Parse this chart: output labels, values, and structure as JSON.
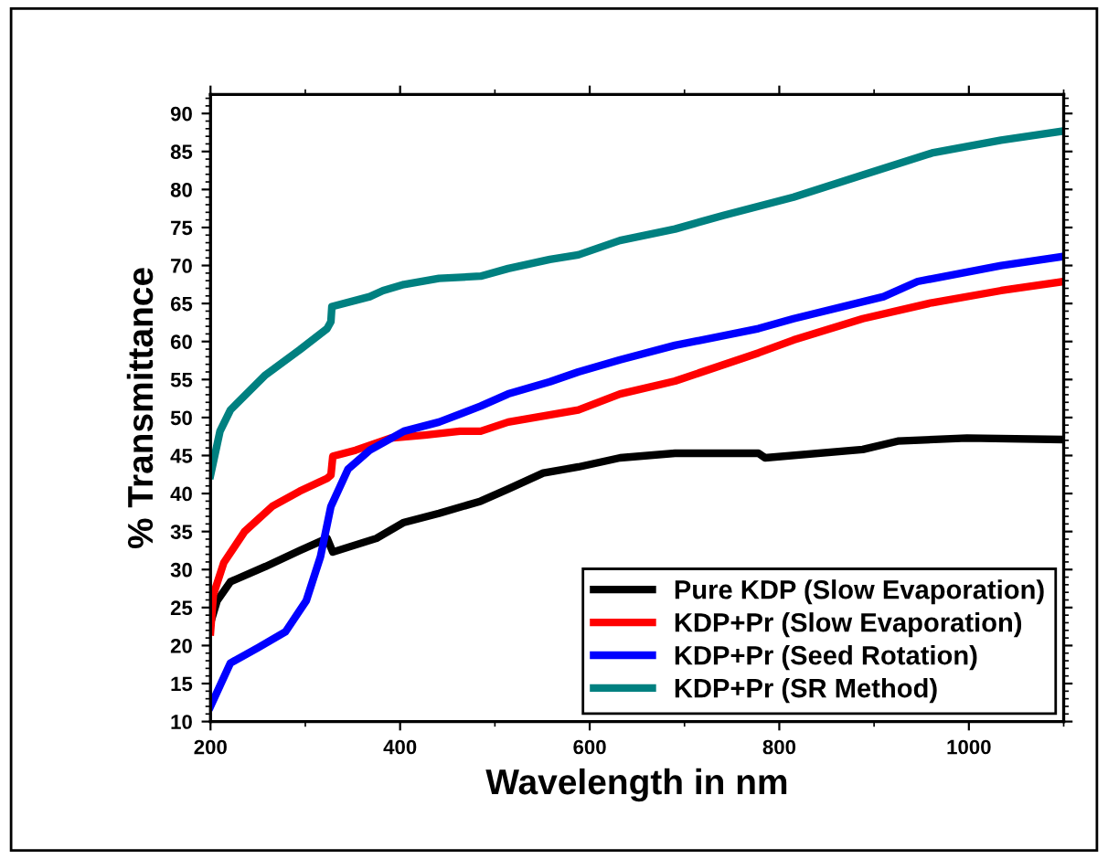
{
  "chart_data": {
    "type": "line",
    "xlabel": "Wavelength in nm",
    "ylabel": "% Transmittance",
    "xlim": [
      200,
      1100
    ],
    "xticks": [
      200,
      400,
      600,
      800,
      1000
    ],
    "ylim": [
      10,
      92.5
    ],
    "yticks": [
      10,
      15,
      20,
      25,
      30,
      35,
      40,
      45,
      50,
      55,
      60,
      65,
      70,
      75,
      80,
      85,
      90
    ],
    "grid": false,
    "legend": "bottom right",
    "marker": "none",
    "line_style": "solid",
    "series": [
      {
        "name": "Pure KDP (Slow Evaporation)",
        "color": "#000000",
        "x": [
          200,
          207,
          221,
          258,
          294,
          323,
          329,
          375,
          404,
          441,
          485,
          514,
          551,
          588,
          632,
          690,
          778,
          785,
          888,
          925,
          998,
          1100
        ],
        "values": [
          23,
          25.9,
          28.4,
          30.4,
          32.5,
          34.1,
          32.3,
          34.1,
          36.2,
          37.4,
          39,
          40.6,
          42.7,
          43.5,
          44.7,
          45.3,
          45.3,
          44.7,
          45.8,
          46.9,
          47.3,
          47.1
        ]
      },
      {
        "name": "KDP+Pr (Slow Evaporation)",
        "color": "#ff0000",
        "x": [
          200,
          203,
          214,
          236,
          265,
          294,
          323,
          327,
          329,
          353,
          390,
          426,
          463,
          485,
          514,
          588,
          632,
          690,
          778,
          815,
          888,
          961,
          1034,
          1100
        ],
        "values": [
          21.8,
          26.7,
          30.9,
          35,
          38.3,
          40.3,
          42,
          42.4,
          44.9,
          45.7,
          47.3,
          47.7,
          48.2,
          48.2,
          49.4,
          51,
          53.1,
          54.8,
          58.5,
          60.2,
          63,
          65.1,
          66.7,
          67.9
        ]
      },
      {
        "name": "KDP+Pr (Seed Rotation)",
        "color": "#0000ff",
        "x": [
          200,
          221,
          250,
          279,
          301,
          316,
          327,
          345,
          368,
          404,
          441,
          485,
          514,
          558,
          588,
          632,
          690,
          778,
          815,
          910,
          946,
          1034,
          1100
        ],
        "values": [
          12,
          17.7,
          19.7,
          21.8,
          25.9,
          31.7,
          38.3,
          43.2,
          45.7,
          48.2,
          49.4,
          51.5,
          53.1,
          54.7,
          56,
          57.6,
          59.5,
          61.7,
          63,
          65.9,
          67.9,
          70,
          71.2
        ]
      },
      {
        "name": "KDP+Pr (SR Method)",
        "color": "#008080",
        "x": [
          200,
          210,
          221,
          258,
          294,
          323,
          327,
          328,
          368,
          382,
          404,
          441,
          485,
          514,
          558,
          588,
          632,
          690,
          741,
          815,
          888,
          961,
          1034,
          1100
        ],
        "values": [
          42.4,
          48.2,
          51,
          55.6,
          58.9,
          61.7,
          62.6,
          64.6,
          65.9,
          66.7,
          67.5,
          68.3,
          68.6,
          69.6,
          70.8,
          71.4,
          73.3,
          74.8,
          76.6,
          79,
          81.9,
          84.8,
          86.5,
          87.7
        ]
      }
    ]
  }
}
